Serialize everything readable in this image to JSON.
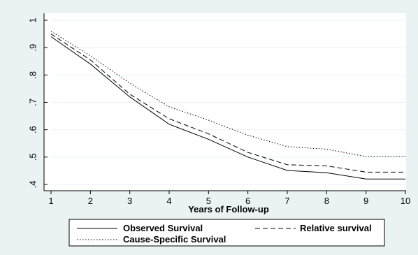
{
  "chart_data": {
    "type": "line",
    "title": "",
    "xlabel": "Years of Follow-up",
    "ylabel": "",
    "x": [
      1,
      2,
      3,
      4,
      5,
      6,
      7,
      8,
      9,
      10
    ],
    "xlim": [
      1,
      10
    ],
    "ylim": [
      0.4,
      1.0
    ],
    "yticks": [
      ".4",
      ".5",
      ".6",
      ".7",
      ".8",
      ".9",
      "1"
    ],
    "xticks": [
      "1",
      "2",
      "3",
      "4",
      "5",
      "6",
      "7",
      "8",
      "9",
      "10"
    ],
    "grid": "y",
    "legend_position": "bottom",
    "series": [
      {
        "name": "Observed Survival",
        "style": "solid",
        "values": [
          0.94,
          0.84,
          0.72,
          0.62,
          0.565,
          0.5,
          0.451,
          0.443,
          0.42,
          0.42
        ]
      },
      {
        "name": "Relative survival",
        "style": "dashed",
        "values": [
          0.95,
          0.855,
          0.73,
          0.64,
          0.585,
          0.517,
          0.472,
          0.468,
          0.445,
          0.445
        ]
      },
      {
        "name": "Cause-Specific Survival",
        "style": "dotted",
        "values": [
          0.96,
          0.87,
          0.77,
          0.684,
          0.635,
          0.58,
          0.538,
          0.529,
          0.502,
          0.502
        ]
      }
    ]
  }
}
